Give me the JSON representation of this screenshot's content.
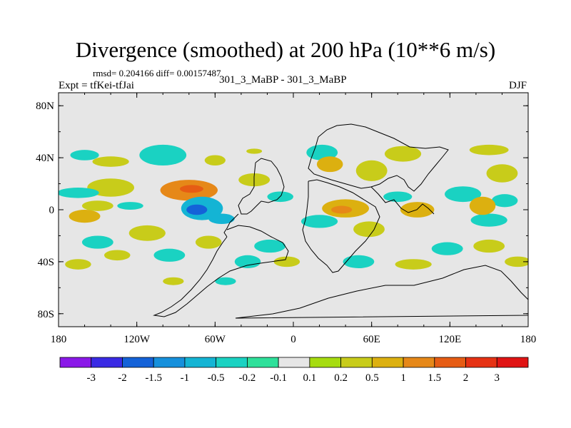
{
  "header": {
    "title": "Divergence (smoothed) at 200 hPa (10**6 m/s)",
    "stats": "rmsd= 0.204166 diff= 0.00157487",
    "cases": "301_3_MaBP - 301_3_MaBP",
    "experiment": "Expt = tfKei-tfJai",
    "season": "DJF"
  },
  "chart_data": {
    "type": "heatmap",
    "title": "Divergence (smoothed) at 200 hPa (10**6 m/s)",
    "xlabel": "",
    "ylabel": "",
    "xlim": [
      -180,
      180
    ],
    "ylim": [
      -90,
      90
    ],
    "x_ticks": [
      {
        "value": -180,
        "label": "180"
      },
      {
        "value": -120,
        "label": "120W"
      },
      {
        "value": -60,
        "label": "60W"
      },
      {
        "value": 0,
        "label": "0"
      },
      {
        "value": 60,
        "label": "60E"
      },
      {
        "value": 120,
        "label": "120E"
      },
      {
        "value": 180,
        "label": "180"
      }
    ],
    "y_ticks": [
      {
        "value": 80,
        "label": "80N"
      },
      {
        "value": 40,
        "label": "40N"
      },
      {
        "value": 0,
        "label": "0"
      },
      {
        "value": -40,
        "label": "40S"
      },
      {
        "value": -80,
        "label": "80S"
      }
    ],
    "background_color": "#e6e6e6",
    "colorbar": {
      "labels": [
        "-3",
        "-2",
        "-1.5",
        "-1",
        "-0.5",
        "-0.2",
        "-0.1",
        "0.1",
        "0.2",
        "0.5",
        "1",
        "1.5",
        "2",
        "3"
      ],
      "colors": [
        "#8a18e8",
        "#3a2ae4",
        "#1462d8",
        "#1690dc",
        "#14b4d4",
        "#1ad2c2",
        "#2ee09a",
        "#e6e6e6",
        "#a6dc10",
        "#c8cc1a",
        "#dcb010",
        "#e68818",
        "#e65c14",
        "#e63214",
        "#e01414"
      ]
    },
    "regions": [
      {
        "lon": -80,
        "lat": 15,
        "rx": 22,
        "ry": 8,
        "value": 1.0
      },
      {
        "lon": -78,
        "lat": 16,
        "rx": 9,
        "ry": 3,
        "value": 1.7
      },
      {
        "lon": -70,
        "lat": 1,
        "rx": 16,
        "ry": 9,
        "value": -1.0
      },
      {
        "lon": -74,
        "lat": 0,
        "rx": 8,
        "ry": 4,
        "value": -1.6
      },
      {
        "lon": -55,
        "lat": -7,
        "rx": 10,
        "ry": 4,
        "value": -0.6
      },
      {
        "lon": 40,
        "lat": 1,
        "rx": 18,
        "ry": 7,
        "value": 0.8
      },
      {
        "lon": 37,
        "lat": 0,
        "rx": 8,
        "ry": 3,
        "value": 1.3
      },
      {
        "lon": 20,
        "lat": -9,
        "rx": 14,
        "ry": 5,
        "value": -0.4
      },
      {
        "lon": 58,
        "lat": -15,
        "rx": 12,
        "ry": 6,
        "value": 0.4
      },
      {
        "lon": 80,
        "lat": 10,
        "rx": 11,
        "ry": 4,
        "value": -0.5
      },
      {
        "lon": 95,
        "lat": 0,
        "rx": 13,
        "ry": 6,
        "value": 0.7
      },
      {
        "lon": 130,
        "lat": 12,
        "rx": 14,
        "ry": 6,
        "value": -0.5
      },
      {
        "lon": 145,
        "lat": 3,
        "rx": 10,
        "ry": 7,
        "value": 0.5
      },
      {
        "lon": 162,
        "lat": 7,
        "rx": 10,
        "ry": 5,
        "value": -0.3
      },
      {
        "lon": 160,
        "lat": 28,
        "rx": 12,
        "ry": 7,
        "value": 0.3
      },
      {
        "lon": 150,
        "lat": 46,
        "rx": 15,
        "ry": 4,
        "value": 0.3
      },
      {
        "lon": -165,
        "lat": 13,
        "rx": 16,
        "ry": 4,
        "value": -0.5
      },
      {
        "lon": -140,
        "lat": 17,
        "rx": 18,
        "ry": 7,
        "value": 0.4
      },
      {
        "lon": -150,
        "lat": 3,
        "rx": 12,
        "ry": 4,
        "value": 0.3
      },
      {
        "lon": -125,
        "lat": 3,
        "rx": 10,
        "ry": 3,
        "value": -0.3
      },
      {
        "lon": -160,
        "lat": 42,
        "rx": 11,
        "ry": 4,
        "value": -0.4
      },
      {
        "lon": -140,
        "lat": 37,
        "rx": 14,
        "ry": 4,
        "value": 0.3
      },
      {
        "lon": -100,
        "lat": 42,
        "rx": 18,
        "ry": 8,
        "value": -0.5
      },
      {
        "lon": -60,
        "lat": 38,
        "rx": 8,
        "ry": 4,
        "value": 0.3
      },
      {
        "lon": -30,
        "lat": 23,
        "rx": 12,
        "ry": 5,
        "value": 0.4
      },
      {
        "lon": -10,
        "lat": 10,
        "rx": 10,
        "ry": 4,
        "value": -0.3
      },
      {
        "lon": 22,
        "lat": 44,
        "rx": 12,
        "ry": 6,
        "value": -0.5
      },
      {
        "lon": 28,
        "lat": 35,
        "rx": 10,
        "ry": 6,
        "value": 0.6
      },
      {
        "lon": 60,
        "lat": 30,
        "rx": 12,
        "ry": 8,
        "value": 0.4
      },
      {
        "lon": 84,
        "lat": 43,
        "rx": 14,
        "ry": 6,
        "value": 0.3
      },
      {
        "lon": 150,
        "lat": -8,
        "rx": 14,
        "ry": 5,
        "value": -0.4
      },
      {
        "lon": -150,
        "lat": -25,
        "rx": 12,
        "ry": 5,
        "value": -0.3
      },
      {
        "lon": -160,
        "lat": -5,
        "rx": 12,
        "ry": 5,
        "value": 0.5
      },
      {
        "lon": -112,
        "lat": -18,
        "rx": 14,
        "ry": 6,
        "value": 0.4
      },
      {
        "lon": -135,
        "lat": -35,
        "rx": 10,
        "ry": 4,
        "value": 0.3
      },
      {
        "lon": -95,
        "lat": -35,
        "rx": 12,
        "ry": 5,
        "value": -0.3
      },
      {
        "lon": -65,
        "lat": -25,
        "rx": 10,
        "ry": 5,
        "value": 0.4
      },
      {
        "lon": -35,
        "lat": -40,
        "rx": 10,
        "ry": 5,
        "value": -0.4
      },
      {
        "lon": -18,
        "lat": -28,
        "rx": 12,
        "ry": 5,
        "value": -0.3
      },
      {
        "lon": -5,
        "lat": -40,
        "rx": 10,
        "ry": 4,
        "value": 0.2
      },
      {
        "lon": 50,
        "lat": -40,
        "rx": 12,
        "ry": 5,
        "value": -0.3
      },
      {
        "lon": 92,
        "lat": -42,
        "rx": 14,
        "ry": 4,
        "value": 0.3
      },
      {
        "lon": 118,
        "lat": -30,
        "rx": 12,
        "ry": 5,
        "value": -0.3
      },
      {
        "lon": 150,
        "lat": -28,
        "rx": 12,
        "ry": 5,
        "value": 0.3
      },
      {
        "lon": 172,
        "lat": -40,
        "rx": 10,
        "ry": 4,
        "value": 0.3
      },
      {
        "lon": -52,
        "lat": -55,
        "rx": 8,
        "ry": 3,
        "value": -0.3
      },
      {
        "lon": -92,
        "lat": -55,
        "rx": 8,
        "ry": 3,
        "value": 0.2
      },
      {
        "lon": -165,
        "lat": -42,
        "rx": 10,
        "ry": 4,
        "value": 0.2
      },
      {
        "lon": -30,
        "lat": 45,
        "rx": 6,
        "ry": 2,
        "value": 0.2
      }
    ]
  }
}
